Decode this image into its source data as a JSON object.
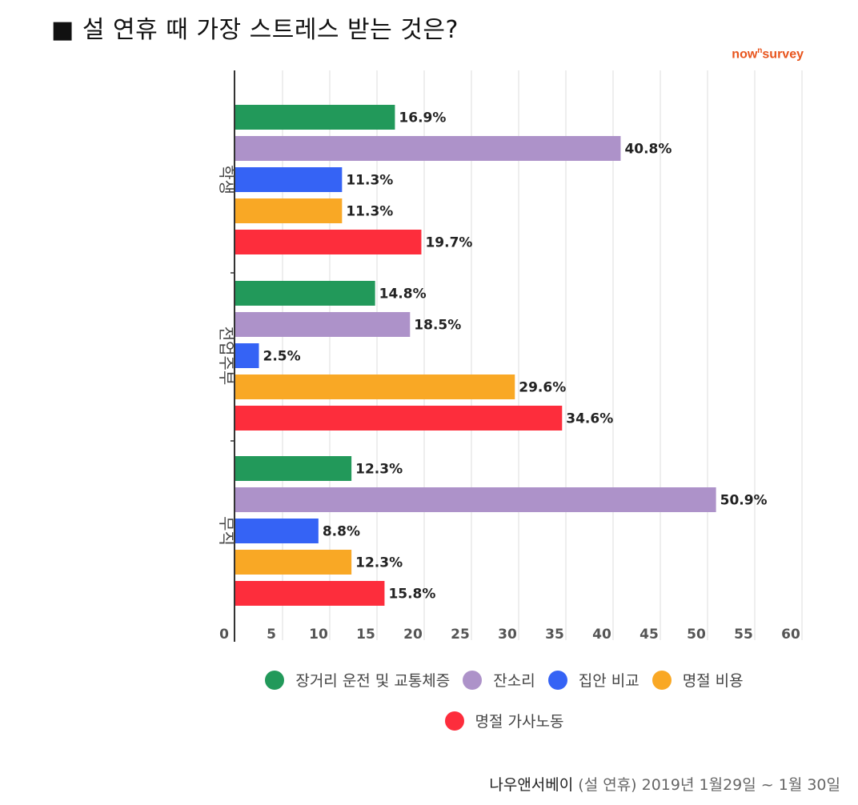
{
  "title": "■ 설 연휴 때 가장 스트레스 받는 것은?",
  "brand": {
    "main": "now",
    "sup": "n",
    "rest": "survey"
  },
  "footer": {
    "source": "나우앤서베이",
    "rest": " (설 연휴) 2019년 1월29일 ~ 1월 30일"
  },
  "chart_data": {
    "type": "bar",
    "orientation": "horizontal",
    "categories": [
      "학생",
      "전업주부",
      "무직"
    ],
    "series": [
      {
        "name": "장거리 운전 및 교통체증",
        "color": "#22995a",
        "values": [
          16.9,
          14.8,
          12.3
        ]
      },
      {
        "name": "잔소리",
        "color": "#ad92c9",
        "values": [
          40.8,
          18.5,
          50.9
        ]
      },
      {
        "name": "집안 비교",
        "color": "#3563f5",
        "values": [
          11.3,
          2.5,
          8.8
        ]
      },
      {
        "name": "명절 비용",
        "color": "#f9a825",
        "values": [
          11.3,
          29.6,
          12.3
        ]
      },
      {
        "name": "명절 가사노동",
        "color": "#fd2d3c",
        "values": [
          19.7,
          34.6,
          15.8
        ]
      }
    ],
    "xticks": [
      0,
      5,
      10,
      15,
      20,
      25,
      30,
      35,
      40,
      45,
      50,
      55,
      60
    ],
    "xlim": [
      0,
      60
    ],
    "grid": true,
    "legend_position": "bottom",
    "value_suffix": "%"
  }
}
